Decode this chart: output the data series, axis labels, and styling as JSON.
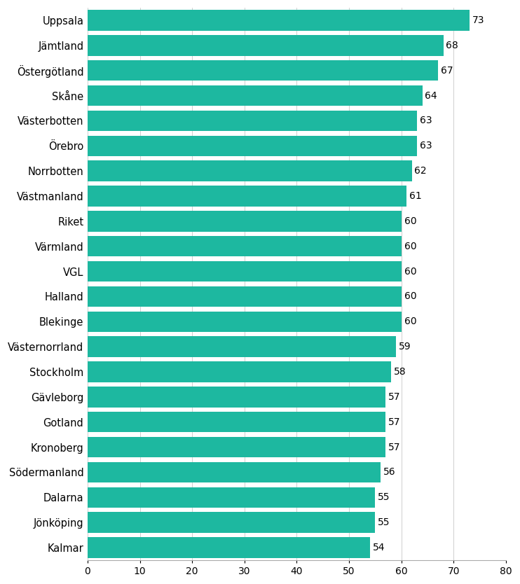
{
  "categories": [
    "Kalmar",
    "Jönköping",
    "Dalarna",
    "Södermanland",
    "Kronoberg",
    "Gotland",
    "Gävleborg",
    "Stockholm",
    "Västernorrland",
    "Blekinge",
    "Halland",
    "VGL",
    "Värmland",
    "Riket",
    "Västmanland",
    "Norrbotten",
    "Örebro",
    "Västerbotten",
    "Skåne",
    "Östergötland",
    "Jämtland",
    "Uppsala"
  ],
  "values": [
    54,
    55,
    55,
    56,
    57,
    57,
    57,
    58,
    59,
    60,
    60,
    60,
    60,
    60,
    61,
    62,
    63,
    63,
    64,
    67,
    68,
    73
  ],
  "bar_color": "#1DB8A0",
  "xlim": [
    0,
    80
  ],
  "xticks": [
    0,
    10,
    20,
    30,
    40,
    50,
    60,
    70,
    80
  ],
  "background_color": "#ffffff",
  "grid_color": "#c8c8c8",
  "label_fontsize": 10.5,
  "value_fontsize": 10,
  "tick_fontsize": 10
}
